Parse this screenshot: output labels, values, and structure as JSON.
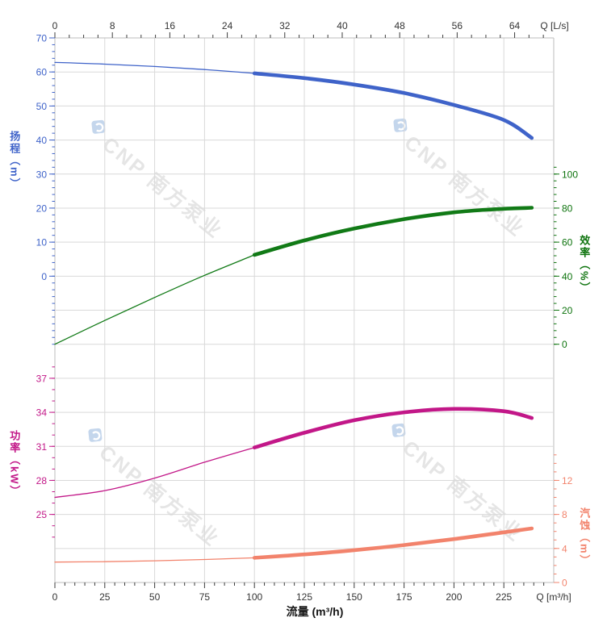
{
  "watermark": {
    "text": "CNP 南方泵业"
  },
  "chart_data": {
    "type": "line",
    "title": "",
    "x_bottom": {
      "title": "流量 (m³/h)",
      "unit_label": "Q [m³/h]",
      "tick_labels": [
        0,
        25,
        50,
        75,
        100,
        125,
        150,
        175,
        200,
        225
      ],
      "range": [
        0,
        250
      ],
      "major_step": 25,
      "minor_step": 5,
      "grid": true
    },
    "x_top": {
      "unit_label": "Q [L/s]",
      "tick_labels": [
        0,
        8,
        16,
        24,
        32,
        40,
        48,
        56,
        64
      ],
      "major_step": 8,
      "minor_step": 2,
      "lps_to_m3h": 3.6
    },
    "axes": {
      "head": {
        "title": "扬程（m）",
        "color": "#3f63c9",
        "ticks": [
          70,
          60,
          50,
          40,
          30,
          20,
          10,
          0
        ],
        "range_shown": [
          70,
          0
        ],
        "minor_step": 2
      },
      "efficiency": {
        "title": "效率（%）",
        "color": "#0d730d",
        "ticks": [
          100,
          80,
          60,
          40,
          20,
          0
        ],
        "range_shown": [
          100,
          0
        ],
        "minor_step": 4
      },
      "power": {
        "title": "功率（kW）",
        "color": "#c21788",
        "ticks": [
          37,
          34,
          31,
          28,
          25
        ],
        "range_shown": [
          37,
          25
        ],
        "minor_step": 1
      },
      "npsh": {
        "title": "汽蚀（m）",
        "color": "#f2836c",
        "ticks": [
          12,
          8,
          4,
          0
        ],
        "range_shown": [
          12,
          0
        ],
        "minor_step": 1
      }
    },
    "series": [
      {
        "name": "head-curve",
        "axis": "head",
        "color": "#3f63c9",
        "thin": [
          [
            0,
            62.8
          ],
          [
            25,
            62.3
          ],
          [
            50,
            61.6
          ],
          [
            75,
            60.7
          ],
          [
            100,
            59.6
          ]
        ],
        "thick": [
          [
            100,
            59.6
          ],
          [
            125,
            58.2
          ],
          [
            150,
            56.3
          ],
          [
            175,
            53.8
          ],
          [
            200,
            50.3
          ],
          [
            225,
            45.9
          ],
          [
            239,
            40.6
          ]
        ]
      },
      {
        "name": "efficiency-curve",
        "axis": "efficiency",
        "color": "#117a16",
        "thin": [
          [
            0,
            0
          ],
          [
            25,
            14
          ],
          [
            50,
            27.5
          ],
          [
            75,
            40.5
          ],
          [
            100,
            52.5
          ]
        ],
        "thick": [
          [
            100,
            52.5
          ],
          [
            125,
            61
          ],
          [
            150,
            68
          ],
          [
            175,
            73.5
          ],
          [
            200,
            77.5
          ],
          [
            220,
            79.3
          ],
          [
            239,
            80.2
          ]
        ]
      },
      {
        "name": "power-curve",
        "axis": "power",
        "color": "#c21788",
        "thin": [
          [
            0,
            26.5
          ],
          [
            25,
            27.1
          ],
          [
            50,
            28.2
          ],
          [
            75,
            29.6
          ],
          [
            100,
            30.9
          ]
        ],
        "thick": [
          [
            100,
            30.9
          ],
          [
            125,
            32.2
          ],
          [
            150,
            33.3
          ],
          [
            175,
            34.0
          ],
          [
            200,
            34.3
          ],
          [
            225,
            34.1
          ],
          [
            239,
            33.5
          ]
        ]
      },
      {
        "name": "npsh-curve",
        "axis": "npsh",
        "color": "#f2836c",
        "thin": [
          [
            0,
            2.4
          ],
          [
            25,
            2.45
          ],
          [
            50,
            2.55
          ],
          [
            75,
            2.7
          ],
          [
            100,
            2.9
          ]
        ],
        "thick": [
          [
            100,
            2.9
          ],
          [
            125,
            3.3
          ],
          [
            150,
            3.8
          ],
          [
            175,
            4.4
          ],
          [
            200,
            5.1
          ],
          [
            225,
            5.9
          ],
          [
            239,
            6.35
          ]
        ]
      }
    ]
  }
}
